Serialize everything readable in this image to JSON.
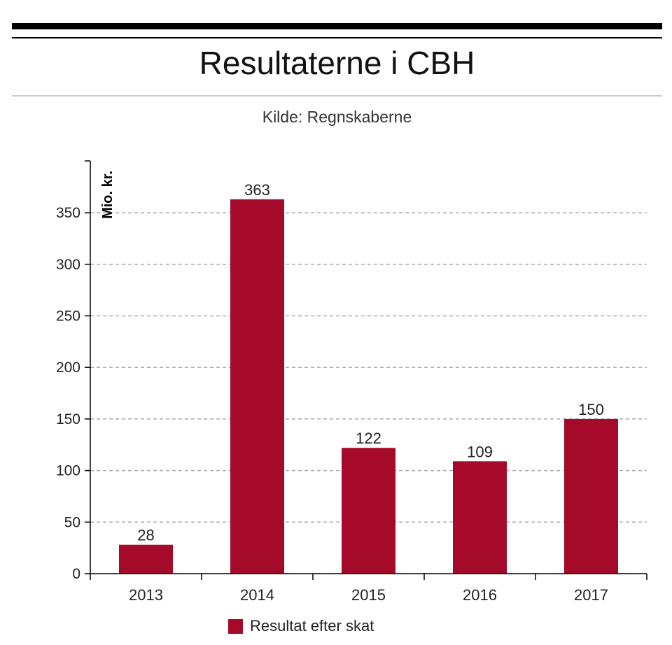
{
  "title": "Resultaterne i CBH",
  "subtitle": "Kilde: Regnskaberne",
  "colors": {
    "bar": "#a50a2a",
    "grid": "#aaaaaa",
    "axis": "#000000"
  },
  "chart_data": {
    "type": "bar",
    "categories": [
      "2013",
      "2014",
      "2015",
      "2016",
      "2017"
    ],
    "series": [
      {
        "name": "Resultat efter skat",
        "values": [
          28,
          363,
          122,
          109,
          150
        ]
      }
    ],
    "data_labels": [
      "28",
      "363",
      "122",
      "109",
      "150"
    ],
    "ylabel": "Mio. kr.",
    "xlabel": "",
    "ylim": [
      0,
      400
    ],
    "yticks": [
      0,
      50,
      100,
      150,
      200,
      250,
      300,
      350
    ],
    "ytick_labels": [
      "0",
      "50",
      "100",
      "150",
      "200",
      "250",
      "300",
      "350"
    ],
    "grid": true,
    "legend": "bottom"
  }
}
